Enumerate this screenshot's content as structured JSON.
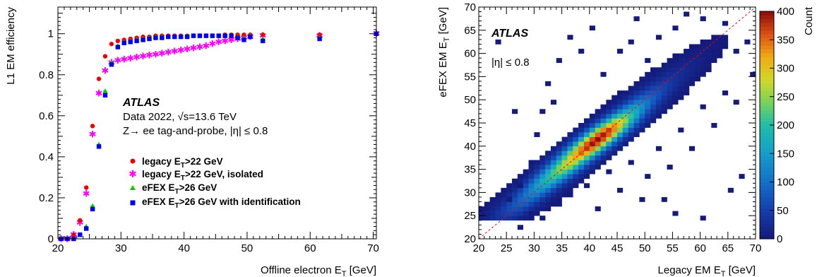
{
  "chart_data": [
    {
      "type": "scatter",
      "xlabel": "Offline electron E_T [GeV]",
      "ylabel": "L1 EM efficiency",
      "xlim": [
        20,
        70.5
      ],
      "ylim": [
        0,
        1.13
      ],
      "xticks": [
        "20",
        "30",
        "40",
        "50",
        "60",
        "70"
      ],
      "yticks": [
        "0",
        "0.2",
        "0.4",
        "0.6",
        "0.8",
        "1"
      ],
      "atlas_label": "ATLAS",
      "annotations": [
        "Data 2022, √s=13.6 TeV",
        "Z→ ee tag-and-probe, |η| ≤ 0.8"
      ],
      "legend_position": "center",
      "series": [
        {
          "name": "legacy E_T>22 GeV, isolated",
          "color": "#ff00ff",
          "marker": "star",
          "x": [
            20.5,
            21.5,
            22.5,
            23.5,
            24.5,
            25.5,
            26.5,
            27.5,
            28.5,
            29.5,
            30.5,
            31.5,
            32.5,
            33.5,
            34.5,
            35.5,
            36.5,
            37.5,
            38.5,
            39.5,
            40.5,
            41.5,
            42.5,
            43.5,
            44.5,
            45.5,
            46.5,
            47.5,
            48.5,
            49.5,
            50.5,
            52.5,
            61.5,
            70.5
          ],
          "y": [
            0.0,
            0.0,
            0.02,
            0.08,
            0.22,
            0.51,
            0.71,
            0.82,
            0.86,
            0.87,
            0.875,
            0.88,
            0.885,
            0.89,
            0.895,
            0.9,
            0.905,
            0.91,
            0.915,
            0.92,
            0.925,
            0.93,
            0.935,
            0.94,
            0.95,
            0.96,
            0.965,
            0.97,
            0.975,
            0.98,
            0.985,
            0.99,
            0.99,
            1.0
          ]
        },
        {
          "name": "legacy E_T>22 GeV",
          "color": "#ee0000",
          "marker": "circle",
          "x": [
            20.5,
            21.5,
            22.5,
            23.5,
            24.5,
            25.5,
            26.5,
            27.5,
            28.5,
            29.5,
            30.5,
            31.5,
            32.5,
            33.5,
            34.5,
            35.5,
            36.5,
            37.5,
            38.5,
            39.5,
            40.5,
            41.5,
            42.5,
            43.5,
            44.5,
            45.5,
            46.5,
            47.5,
            48.5,
            49.5,
            50.5,
            52.5,
            61.5,
            70.5
          ],
          "y": [
            0.0,
            0.0,
            0.02,
            0.09,
            0.25,
            0.55,
            0.78,
            0.89,
            0.95,
            0.965,
            0.97,
            0.975,
            0.98,
            0.985,
            0.985,
            0.99,
            0.99,
            0.99,
            0.99,
            0.99,
            0.99,
            0.99,
            0.99,
            0.99,
            0.99,
            0.99,
            0.995,
            0.995,
            0.995,
            0.995,
            0.995,
            0.995,
            0.995,
            1.0
          ]
        },
        {
          "name": "eFEX E_T>26 GeV",
          "color": "#00cc00",
          "marker": "triangle",
          "x": [
            20.5,
            21.5,
            22.5,
            23.5,
            24.5,
            25.5,
            26.5,
            27.5,
            28.5,
            29.5,
            30.5,
            31.5,
            32.5,
            33.5,
            34.5,
            35.5,
            36.5,
            37.5,
            38.5,
            39.5,
            40.5,
            41.5,
            42.5,
            43.5,
            44.5,
            45.5,
            46.5,
            47.5,
            48.5,
            49.5,
            50.5,
            52.5,
            61.5,
            70.5
          ],
          "y": [
            0.0,
            0.0,
            0.0,
            0.02,
            0.06,
            0.16,
            0.46,
            0.72,
            0.86,
            0.94,
            0.96,
            0.965,
            0.97,
            0.975,
            0.98,
            0.985,
            0.985,
            0.985,
            0.985,
            0.985,
            0.99,
            0.99,
            0.99,
            0.99,
            0.99,
            0.99,
            0.99,
            0.99,
            0.985,
            0.98,
            0.99,
            0.975,
            0.98,
            1.0
          ]
        },
        {
          "name": "eFEX E_T>26 GeV with identification",
          "color": "#0000ee",
          "marker": "square",
          "x": [
            20.5,
            21.5,
            22.5,
            23.5,
            24.5,
            25.5,
            26.5,
            27.5,
            28.5,
            29.5,
            30.5,
            31.5,
            32.5,
            33.5,
            34.5,
            35.5,
            36.5,
            37.5,
            38.5,
            39.5,
            40.5,
            41.5,
            42.5,
            43.5,
            44.5,
            45.5,
            46.5,
            47.5,
            48.5,
            49.5,
            50.5,
            52.5,
            61.5,
            70.5
          ],
          "y": [
            0.0,
            0.0,
            0.0,
            0.02,
            0.05,
            0.145,
            0.45,
            0.7,
            0.85,
            0.935,
            0.955,
            0.96,
            0.965,
            0.97,
            0.975,
            0.98,
            0.98,
            0.985,
            0.985,
            0.985,
            0.985,
            0.99,
            0.99,
            0.99,
            0.99,
            0.99,
            0.99,
            0.99,
            0.98,
            0.97,
            0.985,
            0.965,
            0.975,
            1.0
          ]
        }
      ]
    },
    {
      "type": "heatmap",
      "xlabel": "Legacy EM E_T [GeV]",
      "ylabel": "eFEX EM E_T [GeV]",
      "zlabel": "Count",
      "xlim": [
        20,
        70
      ],
      "ylim": [
        20,
        70
      ],
      "zlim": [
        0,
        400
      ],
      "bin_width": 1,
      "xticks": [
        "20",
        "25",
        "30",
        "35",
        "40",
        "45",
        "50",
        "55",
        "60",
        "65",
        "70"
      ],
      "yticks": [
        "20",
        "25",
        "30",
        "35",
        "40",
        "45",
        "50",
        "55",
        "60",
        "65",
        "70"
      ],
      "zticks": [
        "0",
        "50",
        "100",
        "150",
        "200",
        "250",
        "300",
        "350",
        "400"
      ],
      "atlas_label": "ATLAS",
      "annotations": [
        "|η| ≤ 0.8"
      ],
      "diagonal_line": {
        "from": [
          20,
          20
        ],
        "to": [
          70,
          70
        ],
        "color": "#ff0000",
        "style": "dashed"
      },
      "diagonal_profile": {
        "comment": "mean count per unit-width bin along the diagonal (x = y), in GeV bins starting at 24",
        "bins_start": 24,
        "counts": [
          40,
          55,
          70,
          85,
          100,
          120,
          140,
          165,
          190,
          215,
          240,
          265,
          290,
          320,
          350,
          375,
          395,
          400,
          390,
          370,
          330,
          280,
          230,
          185,
          150,
          120,
          95,
          75,
          60,
          48,
          38,
          30,
          24,
          18,
          14,
          10,
          7,
          5,
          3,
          2
        ]
      },
      "bins_outside_band": [
        [
          23,
          62
        ],
        [
          26,
          47
        ],
        [
          25,
          28
        ],
        [
          27,
          31
        ],
        [
          29,
          36
        ],
        [
          30,
          42
        ],
        [
          31,
          47
        ],
        [
          32,
          53
        ],
        [
          33,
          49
        ],
        [
          34,
          58
        ],
        [
          36,
          63
        ],
        [
          38,
          60
        ],
        [
          40,
          65
        ],
        [
          42,
          55
        ],
        [
          45,
          60
        ],
        [
          47,
          62
        ],
        [
          48,
          67
        ],
        [
          50,
          58
        ],
        [
          52,
          63
        ],
        [
          55,
          65
        ],
        [
          57,
          68
        ],
        [
          60,
          67
        ],
        [
          62,
          60
        ],
        [
          64,
          66
        ],
        [
          66,
          60
        ],
        [
          68,
          62
        ],
        [
          69,
          55
        ],
        [
          27,
          22
        ],
        [
          29,
          25
        ],
        [
          31,
          24
        ],
        [
          34,
          27
        ],
        [
          36,
          29
        ],
        [
          39,
          31
        ],
        [
          41,
          26
        ],
        [
          43,
          34
        ],
        [
          45,
          30
        ],
        [
          47,
          36
        ],
        [
          49,
          28
        ],
        [
          50,
          33
        ],
        [
          52,
          39
        ],
        [
          54,
          35
        ],
        [
          56,
          43
        ],
        [
          58,
          39
        ],
        [
          60,
          48
        ],
        [
          62,
          44
        ],
        [
          64,
          51
        ],
        [
          66,
          49
        ],
        [
          67,
          33
        ],
        [
          55,
          25
        ],
        [
          65,
          30
        ],
        [
          60,
          24
        ],
        [
          53,
          28
        ]
      ]
    }
  ]
}
